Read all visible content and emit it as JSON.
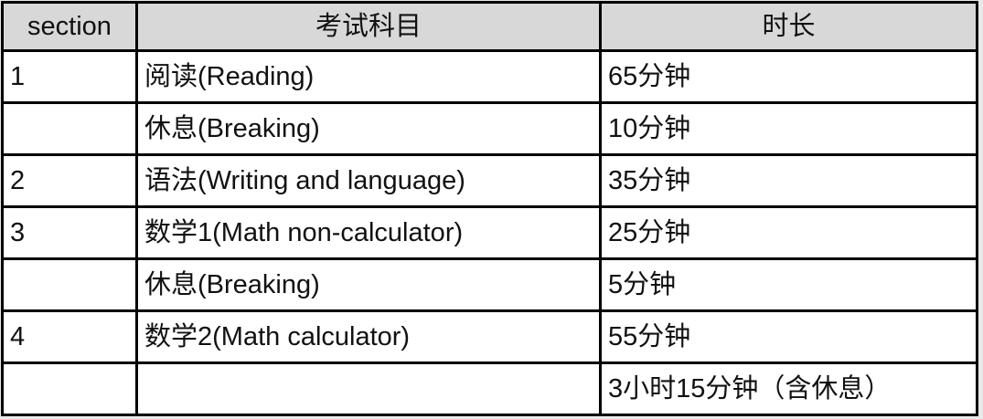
{
  "colors": {
    "page_bg": "#e9e9e9",
    "header_bg": "#d8d8d8",
    "cell_bg": "#ffffff",
    "border": "#000000",
    "text": "#111111"
  },
  "table": {
    "headers": {
      "section": "section",
      "subject": "考试科目",
      "duration": "时长"
    },
    "rows": [
      {
        "section": "1",
        "subject": "阅读(Reading)",
        "duration": "65分钟"
      },
      {
        "section": "",
        "subject": "休息(Breaking)",
        "duration": "10分钟"
      },
      {
        "section": "2",
        "subject": "语法(Writing and language)",
        "duration": "35分钟"
      },
      {
        "section": "3",
        "subject": "数学1(Math non-calculator)",
        "duration": "25分钟"
      },
      {
        "section": "",
        "subject": "休息(Breaking)",
        "duration": "5分钟"
      },
      {
        "section": "4",
        "subject": "数学2(Math calculator)",
        "duration": "55分钟"
      },
      {
        "section": "",
        "subject": "",
        "duration": "3小时15分钟（含休息）"
      }
    ]
  }
}
